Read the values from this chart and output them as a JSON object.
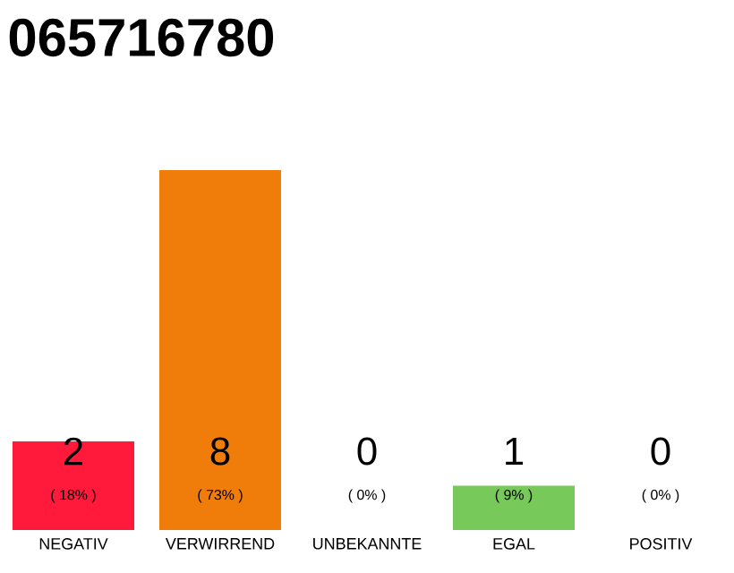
{
  "chart_data": {
    "type": "bar",
    "title": "065716780",
    "categories": [
      "NEGATIV",
      "VERWIRREND",
      "UNBEKANNTE",
      "EGAL",
      "POSITIV"
    ],
    "values": [
      18,
      73,
      0,
      9,
      0
    ],
    "colors": [
      "#ff1a3c",
      "#f07d0a",
      "#9e9e9e",
      "#77c95a",
      "#9e9e9e"
    ],
    "value_labels": [
      "( 18% )",
      "( 73% )",
      "( 0% )",
      "( 9% )",
      "( 0% )"
    ],
    "annotations": [
      "2",
      "8",
      "0",
      "1",
      "0"
    ],
    "tick_labels": "x"
  }
}
